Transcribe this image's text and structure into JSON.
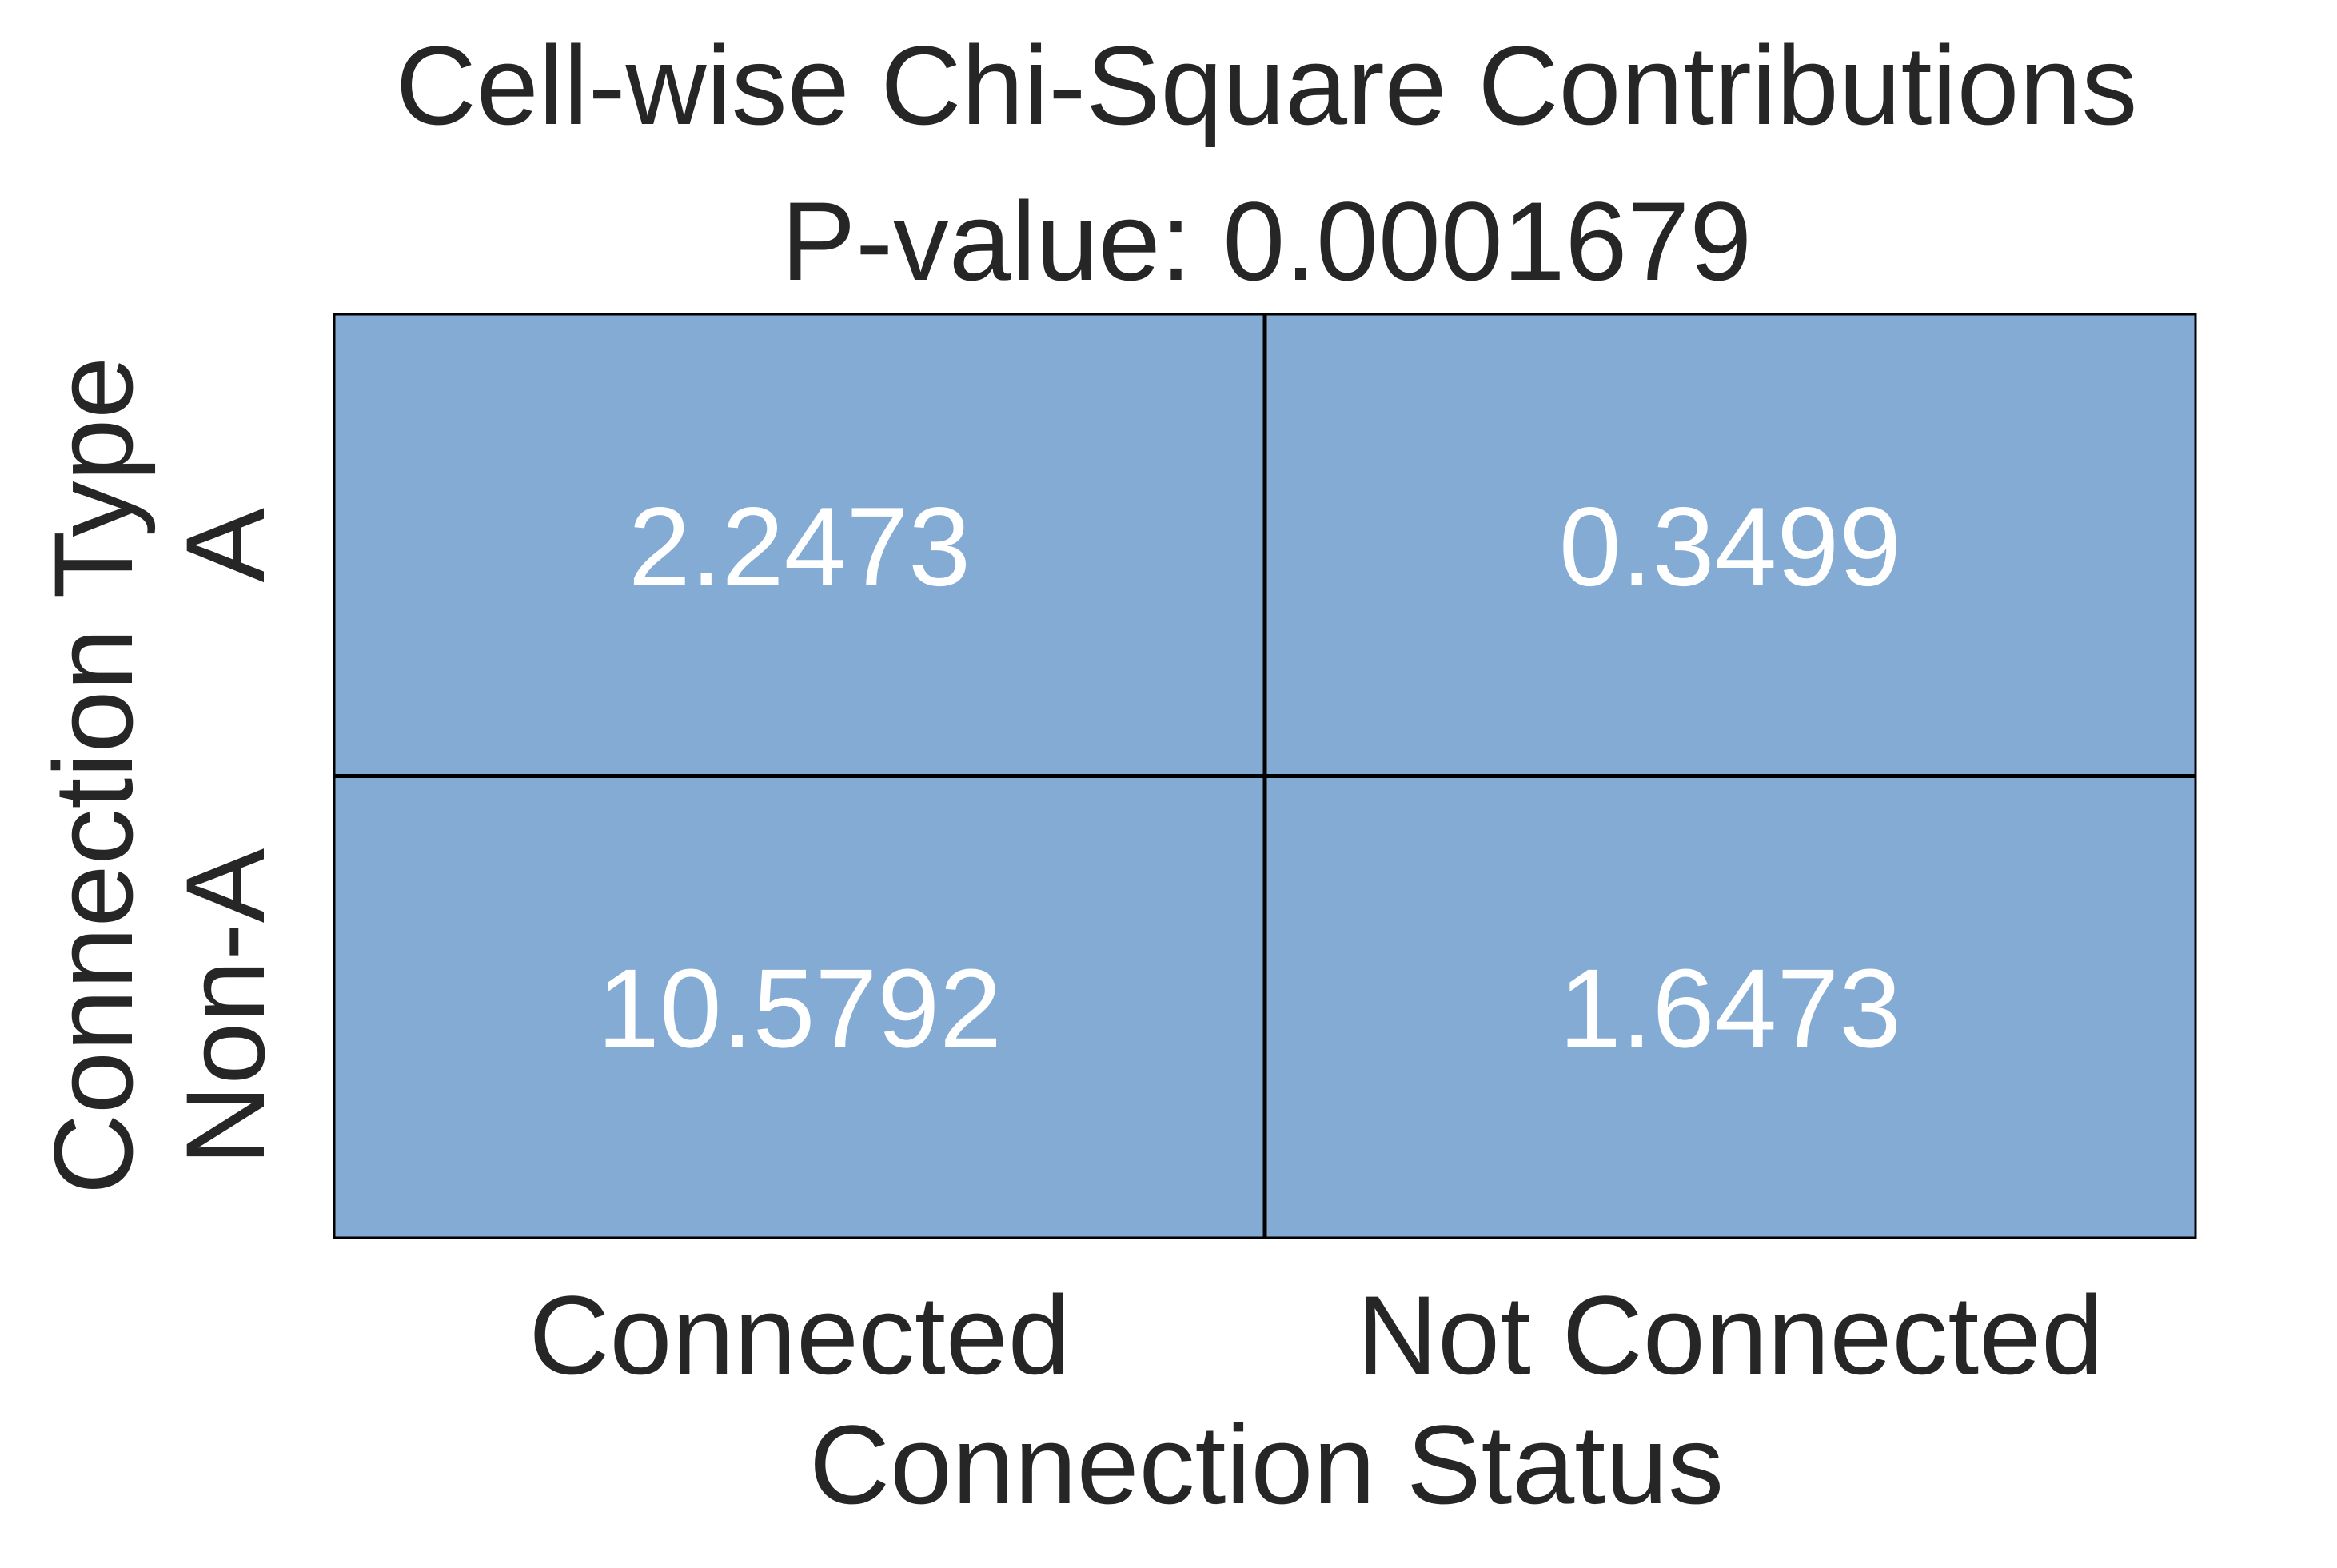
{
  "chart_data": {
    "type": "heatmap",
    "title": "Cell-wise Chi-Square Contributions",
    "subtitle": "P-value: 0.0001679",
    "xlabel": "Connection Status",
    "ylabel": "Connection Type",
    "x_categories": [
      "Connected",
      "Not Connected"
    ],
    "y_categories": [
      "A",
      "Non-A"
    ],
    "values": [
      [
        2.2473,
        0.3499
      ],
      [
        10.5792,
        1.6473
      ]
    ],
    "cell_labels": [
      [
        "2.2473",
        "0.3499"
      ],
      [
        "10.5792",
        "1.6473"
      ]
    ],
    "cell_color": "#84abd4",
    "annotation_color": "#ffffff",
    "text_color": "#262626",
    "grid_line_color": "#000000"
  }
}
